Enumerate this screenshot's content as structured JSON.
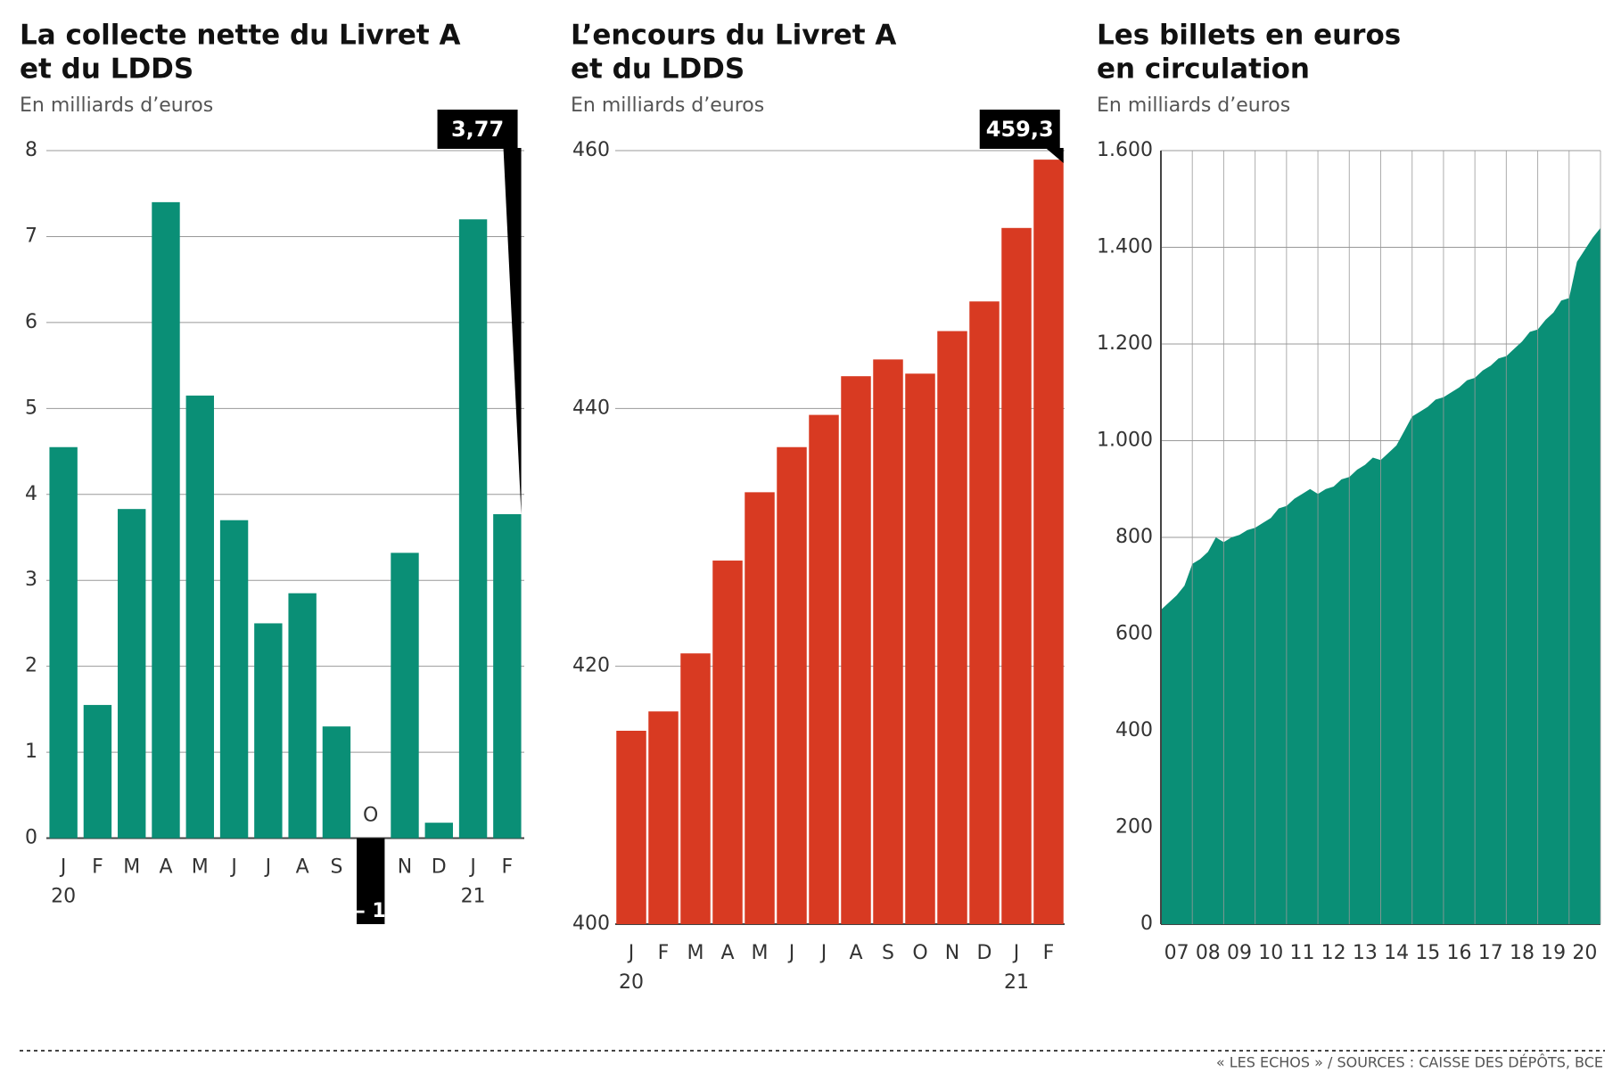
{
  "source": "« LES ECHOS » / SOURCES : CAISSE DES DÉPÔTS, BCE",
  "chart_data": [
    {
      "type": "bar",
      "title": [
        "La collecte nette du Livret A",
        "et du LDDS"
      ],
      "subtitle": "En milliards d’euros",
      "categories": [
        "J",
        "F",
        "M",
        "A",
        "M",
        "J",
        "J",
        "A",
        "S",
        "O",
        "N",
        "D",
        "J",
        "F"
      ],
      "year_labels": [
        "20",
        null,
        null,
        null,
        null,
        null,
        null,
        null,
        null,
        null,
        null,
        null,
        "21",
        null
      ],
      "values": [
        4.55,
        1.55,
        3.83,
        7.4,
        5.15,
        3.7,
        2.5,
        2.85,
        1.3,
        -1,
        3.32,
        0.18,
        7.2,
        3.77
      ],
      "value_labels": [
        null,
        null,
        null,
        null,
        null,
        null,
        null,
        null,
        null,
        "– 1",
        null,
        null,
        null,
        "3,77"
      ],
      "color": "#0a8f76",
      "colors": [
        "#0a8f76",
        "#0a8f76",
        "#0a8f76",
        "#0a8f76",
        "#0a8f76",
        "#0a8f76",
        "#0a8f76",
        "#0a8f76",
        "#0a8f76",
        "#000000",
        "#0a8f76",
        "#0a8f76",
        "#0a8f76",
        "#0a8f76"
      ],
      "ylim": [
        -1,
        8
      ],
      "yticks": [
        0,
        1,
        2,
        3,
        4,
        5,
        6,
        7,
        8
      ],
      "grid": true
    },
    {
      "type": "bar",
      "title": [
        "L’encours du Livret A",
        "et du LDDS"
      ],
      "subtitle": "En milliards d’euros",
      "categories": [
        "J",
        "F",
        "M",
        "A",
        "M",
        "J",
        "J",
        "A",
        "S",
        "O",
        "N",
        "D",
        "J",
        "F"
      ],
      "year_labels": [
        "20",
        null,
        null,
        null,
        null,
        null,
        null,
        null,
        null,
        null,
        null,
        null,
        "21",
        null
      ],
      "values": [
        415,
        416.5,
        421,
        428.2,
        433.5,
        437,
        439.5,
        442.5,
        443.8,
        442.7,
        446,
        448.3,
        454,
        459.3
      ],
      "value_labels": [
        null,
        null,
        null,
        null,
        null,
        null,
        null,
        null,
        null,
        null,
        null,
        null,
        null,
        "459,3"
      ],
      "color": "#d83a22",
      "ylim": [
        400,
        460
      ],
      "yticks": [
        400,
        420,
        440,
        460
      ],
      "grid": true
    },
    {
      "type": "area",
      "title": [
        "Les billets en euros",
        "en circulation"
      ],
      "subtitle": "En milliards d’euros",
      "x": [
        2007,
        2007.25,
        2007.5,
        2007.75,
        2008,
        2008.25,
        2008.5,
        2008.75,
        2009,
        2009.25,
        2009.5,
        2009.75,
        2010,
        2010.25,
        2010.5,
        2010.75,
        2011,
        2011.25,
        2011.5,
        2011.75,
        2012,
        2012.25,
        2012.5,
        2012.75,
        2013,
        2013.25,
        2013.5,
        2013.75,
        2014,
        2014.25,
        2014.5,
        2014.75,
        2015,
        2015.25,
        2015.5,
        2015.75,
        2016,
        2016.25,
        2016.5,
        2016.75,
        2017,
        2017.25,
        2017.5,
        2017.75,
        2018,
        2018.25,
        2018.5,
        2018.75,
        2019,
        2019.25,
        2019.5,
        2019.75,
        2020,
        2020.25,
        2020.5,
        2020.75,
        2021
      ],
      "values": [
        650,
        665,
        680,
        700,
        745,
        755,
        770,
        800,
        790,
        800,
        805,
        815,
        820,
        830,
        840,
        860,
        865,
        880,
        890,
        900,
        890,
        900,
        905,
        920,
        925,
        940,
        950,
        965,
        960,
        975,
        990,
        1020,
        1050,
        1060,
        1070,
        1085,
        1090,
        1100,
        1110,
        1125,
        1130,
        1145,
        1155,
        1170,
        1175,
        1190,
        1205,
        1225,
        1230,
        1250,
        1265,
        1290,
        1295,
        1370,
        1395,
        1420,
        1440
      ],
      "color": "#0a8f76",
      "xlim": [
        2007,
        2021
      ],
      "xticks": [
        {
          "value": 2007.5,
          "label": "07"
        },
        {
          "value": 2008.5,
          "label": "08"
        },
        {
          "value": 2009.5,
          "label": "09"
        },
        {
          "value": 2010.5,
          "label": "10"
        },
        {
          "value": 2011.5,
          "label": "11"
        },
        {
          "value": 2012.5,
          "label": "12"
        },
        {
          "value": 2013.5,
          "label": "13"
        },
        {
          "value": 2014.5,
          "label": "14"
        },
        {
          "value": 2015.5,
          "label": "15"
        },
        {
          "value": 2016.5,
          "label": "16"
        },
        {
          "value": 2017.5,
          "label": "17"
        },
        {
          "value": 2018.5,
          "label": "18"
        },
        {
          "value": 2019.5,
          "label": "19"
        },
        {
          "value": 2020.5,
          "label": "20"
        }
      ],
      "ylim": [
        0,
        1600
      ],
      "yticks": [
        0,
        200,
        400,
        600,
        800,
        {
          "value": 1000,
          "label": "1.000"
        },
        {
          "value": 1200,
          "label": "1.200"
        },
        {
          "value": 1400,
          "label": "1.400"
        },
        {
          "value": 1600,
          "label": "1.600"
        }
      ],
      "grid": true
    }
  ]
}
